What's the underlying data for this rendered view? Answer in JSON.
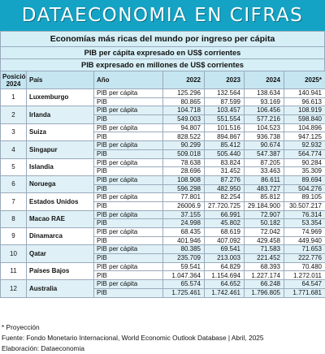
{
  "banner": {
    "title": "DATAECONOMIA EN CIFRAS"
  },
  "headers": {
    "main": "Economías más ricas del mundo por ingreso per cápita",
    "sub1": "PIB per cápita expresado en US$ corrientes",
    "sub2": "PIB expresado en millones de US$ corrientes"
  },
  "table": {
    "columns": {
      "position": "Posición 2024",
      "country": "País",
      "year": "Año",
      "y2022": "2022",
      "y2023": "2023",
      "y2024": "2024",
      "y2025": "2025*"
    },
    "metric_labels": {
      "per_capita": "PIB per cápita",
      "gdp": "PIB"
    },
    "rows": [
      {
        "pos": "1",
        "country": "Luxemburgo",
        "per_capita": [
          "125.296",
          "132.564",
          "138.634",
          "140.941"
        ],
        "gdp": [
          "80.865",
          "87.599",
          "93.169",
          "96.613"
        ]
      },
      {
        "pos": "2",
        "country": "Irlanda",
        "per_capita": [
          "104.718",
          "103.457",
          "106.456",
          "108.919"
        ],
        "gdp": [
          "549.003",
          "551.554",
          "577.216",
          "598.840"
        ]
      },
      {
        "pos": "3",
        "country": "Suiza",
        "per_capita": [
          "94.807",
          "101.516",
          "104.523",
          "104.896"
        ],
        "gdp": [
          "828.522",
          "894.867",
          "936.738",
          "947.125"
        ]
      },
      {
        "pos": "4",
        "country": "Singapur",
        "per_capita": [
          "90.299",
          "85.412",
          "90.674",
          "92.932"
        ],
        "gdp": [
          "509.018",
          "505.440",
          "547.387",
          "564.774"
        ]
      },
      {
        "pos": "5",
        "country": "Islandia",
        "per_capita": [
          "78.638",
          "83.824",
          "87.205",
          "90.284"
        ],
        "gdp": [
          "28.696",
          "31.452",
          "33.463",
          "35.309"
        ]
      },
      {
        "pos": "6",
        "country": "Noruega",
        "per_capita": [
          "108.908",
          "87.276",
          "86.611",
          "89.694"
        ],
        "gdp": [
          "596.298",
          "482.950",
          "483.727",
          "504.276"
        ]
      },
      {
        "pos": "7",
        "country": "Estados Unidos",
        "per_capita": [
          "77.801",
          "82.254",
          "85.812",
          "89.105"
        ],
        "gdp": [
          "26006.9",
          "27.720.725",
          "29.184.900",
          "30.507.217"
        ]
      },
      {
        "pos": "8",
        "country": "Macao RAE",
        "per_capita": [
          "37.155",
          "66.991",
          "72.907",
          "76.314"
        ],
        "gdp": [
          "24.998",
          "45.802",
          "50.182",
          "53.354"
        ]
      },
      {
        "pos": "9",
        "country": "Dinamarca",
        "per_capita": [
          "68.435",
          "68.619",
          "72.042",
          "74.969"
        ],
        "gdp": [
          "401.946",
          "407.092",
          "429.458",
          "449.940"
        ]
      },
      {
        "pos": "10",
        "country": "Qatar",
        "per_capita": [
          "80.385",
          "69.541",
          "71.583",
          "71.653"
        ],
        "gdp": [
          "235.709",
          "213.003",
          "221.452",
          "222.776"
        ]
      },
      {
        "pos": "11",
        "country": "Países Bajos",
        "per_capita": [
          "59.541",
          "64.829",
          "68.393",
          "70.480"
        ],
        "gdp": [
          "1.047.364",
          "1.154.694",
          "1.227.174",
          "1.272.011"
        ]
      },
      {
        "pos": "12",
        "country": "Australia",
        "per_capita": [
          "65.574",
          "64.652",
          "66.248",
          "64.547"
        ],
        "gdp": [
          "1.725.461",
          "1.742.461",
          "1.796.805",
          "1.771.681"
        ]
      }
    ]
  },
  "notes": {
    "projection": "* Proyección",
    "source": "Fuente: Fondo Monetario Internacional, World Economic Outlook Database | Abril, 2025",
    "elaboration": "Elaboración: Dataeconomia"
  }
}
